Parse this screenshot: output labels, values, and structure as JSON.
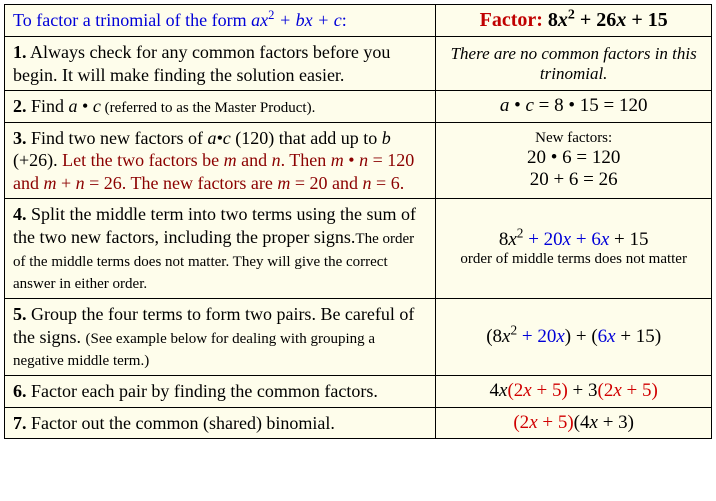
{
  "colors": {
    "background": "#fefdeb",
    "border": "#000000",
    "header_blue": "#0000d8",
    "header_red": "#c00000",
    "dark_red": "#8b0000",
    "red": "#d00000",
    "blue": "#0000d8",
    "black": "#000000"
  },
  "table": {
    "header": {
      "left_prefix": "To factor a trinomial of the form ",
      "left_expr_a": "ax",
      "left_expr_sup": "2",
      "left_expr_rest": " + bx + c",
      "left_suffix": ":",
      "right_label": "Factor: ",
      "right_expr_a": "8",
      "right_expr_x": "x",
      "right_expr_sup": "2",
      "right_expr_rest1": " + 26",
      "right_expr_x2": "x",
      "right_expr_rest2": " + 15"
    },
    "rows": [
      {
        "num": "1.",
        "main": " Always check for any common factors before you begin. It will make finding the solution easier.",
        "right_italic": "There are no common factors in this trinomial."
      },
      {
        "num": "2.",
        "main_pre": " Find ",
        "main_i1": "a",
        "main_dot": " • ",
        "main_i2": "c",
        "main_small": " (referred to as the Master Product).",
        "right_i1": "a",
        "right_dot1": " • ",
        "right_i2": "c",
        "right_eq": " = 8 • 15 = 120"
      },
      {
        "num": "3.",
        "main_a": " Find two new factors of ",
        "main_i_ac": "a•c",
        "main_b": " (120) that add up to ",
        "main_i_b": "b",
        "main_c": " (+26). ",
        "red_a": "Let the two factors be ",
        "red_i_m": "m",
        "red_b": " and ",
        "red_i_n": "n",
        "red_c": ". Then ",
        "red_i_m2": "m",
        "red_dot": " • ",
        "red_i_n2": "n",
        "red_eq1": " = 120 and ",
        "red_i_m3": "m",
        "red_plus": " + ",
        "red_i_n3": "n",
        "red_eq2": " = 26. The new factors are ",
        "red_i_m4": "m",
        "red_eq3": " = 20 and ",
        "red_i_n4": "n",
        "red_eq4": " = 6.",
        "right_label": "New factors:",
        "right_l1": "20 • 6 = 120",
        "right_l2": "20 + 6 = 26"
      },
      {
        "num": "4.",
        "main_a": " Split the middle term into two terms using the sum of the two new factors, including the proper signs.",
        "small": "The order of the middle terms does not matter. They will give the correct answer in either order.",
        "r_8": "8",
        "r_x": "x",
        "r_sup": "2",
        "r_blue_a": " + 20",
        "r_blue_x": "x",
        "r_blue_b": " + 6",
        "r_blue_x2": "x",
        "r_black_end": " + 15",
        "r_note": "order of middle terms does not matter"
      },
      {
        "num": "5.",
        "main_a": " Group the four terms to form two pairs. Be careful of the signs. ",
        "small": "(See example below for dealing with grouping a negative middle term.)",
        "r_open1": "(",
        "r_8": "8",
        "r_x": "x",
        "r_sup": "2",
        "r_blue_a": " + 20",
        "r_blue_x": "x",
        "r_close1": ") + (",
        "r_blue_b": "6",
        "r_blue_x2": "x",
        "r_black_b": " + 15",
        "r_close2": ")"
      },
      {
        "num": "6.",
        "main": " Factor each pair by finding the common factors.",
        "r_a": "4",
        "r_x": "x",
        "r_red1_open": "(2",
        "r_red1_x": "x",
        "r_red1_rest": " + 5)",
        "r_mid": " + 3",
        "r_red2_open": "(2",
        "r_red2_x": "x",
        "r_red2_rest": " + 5)"
      },
      {
        "num": "7.",
        "main": " Factor out the common (shared) binomial.",
        "r_red_open": "(2",
        "r_red_x": "x",
        "r_red_rest": " + 5)",
        "r_black_open": "(4",
        "r_black_x": "x",
        "r_black_rest": " + 3)"
      }
    ]
  }
}
